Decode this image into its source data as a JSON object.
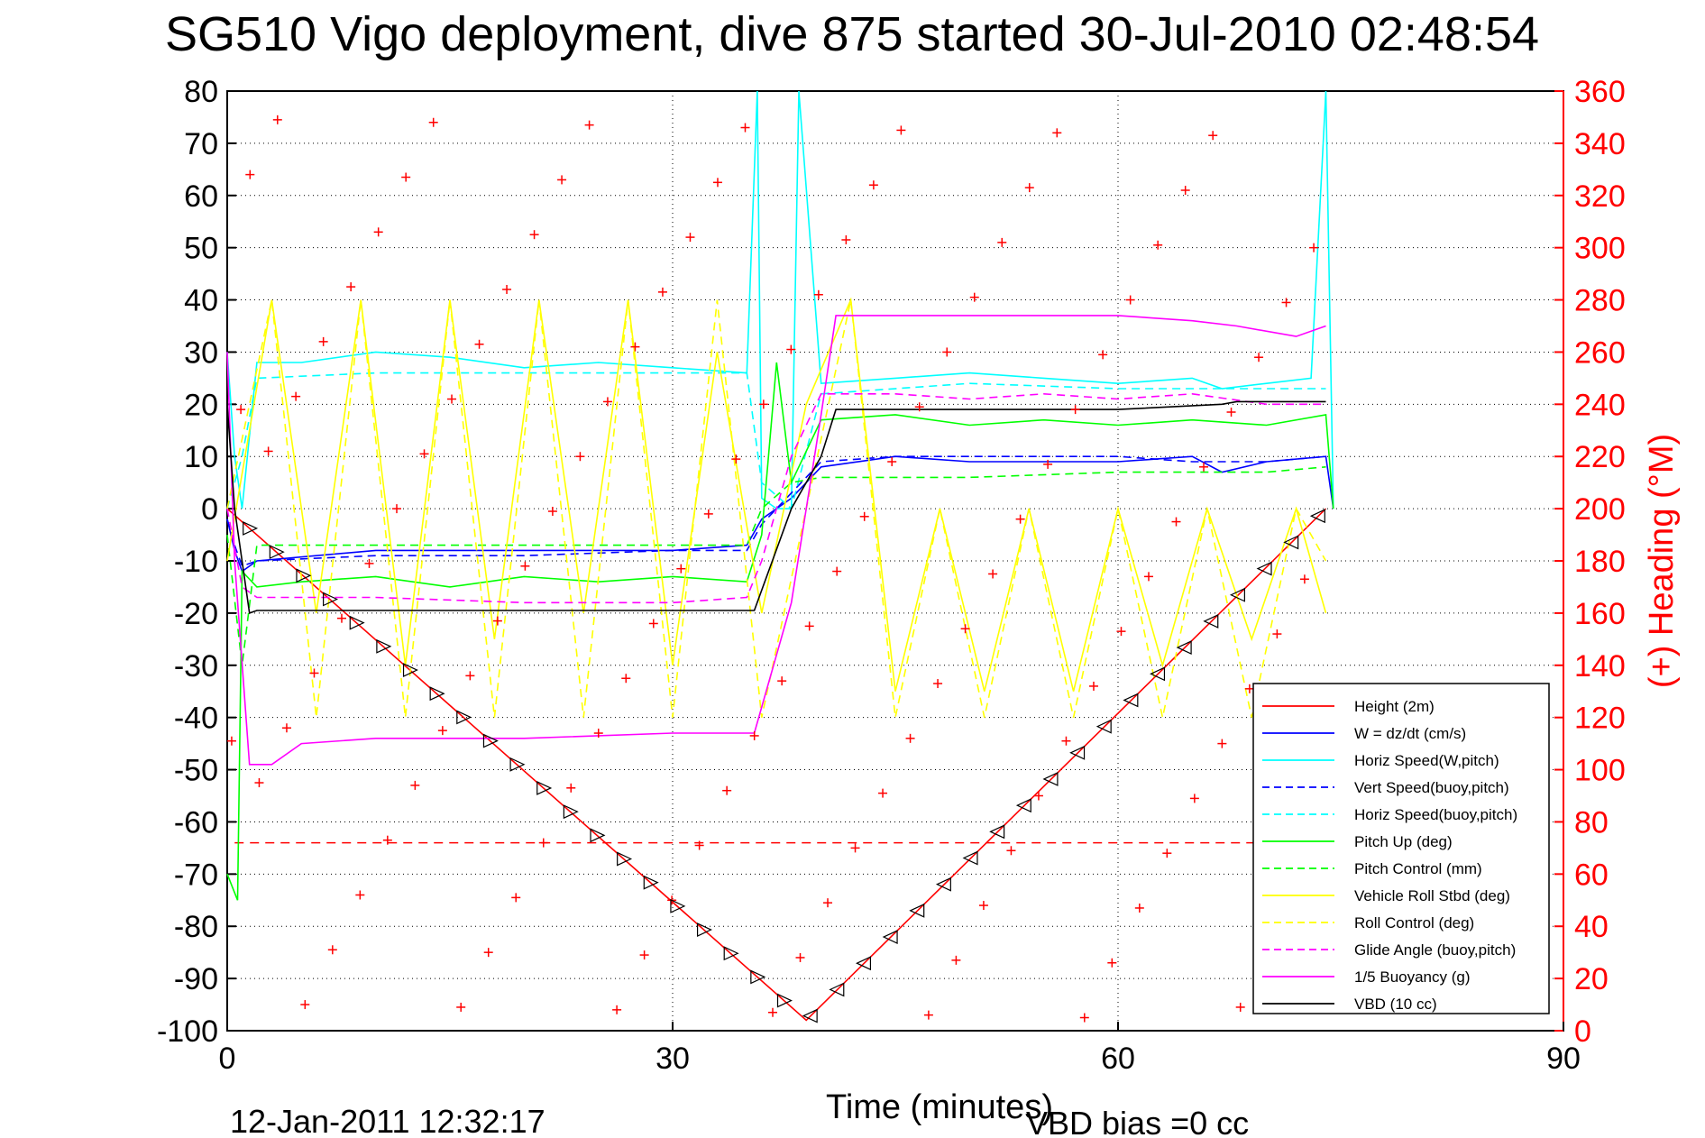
{
  "title": "SG510 Vigo deployment, dive 875 started 30-Jul-2010 02:48:54",
  "footer_left": "12-Jan-2011 12:32:17",
  "footer_right": "VBD bias =0 cc",
  "chart_data": {
    "type": "line",
    "title": "SG510 Vigo deployment, dive 875 started 30-Jul-2010 02:48:54",
    "xlabel": "Time (minutes)",
    "ylabel": "",
    "ylabel_right": "(+) Heading (°M)",
    "xlim": [
      0,
      90
    ],
    "ylim": [
      -100,
      80
    ],
    "ylim_right": [
      0,
      360
    ],
    "x_ticks": [
      "0",
      "30",
      "60",
      "90"
    ],
    "y_ticks": [
      "80",
      "70",
      "60",
      "50",
      "40",
      "30",
      "20",
      "10",
      "0",
      "-10",
      "-20",
      "-30",
      "-40",
      "-50",
      "-60",
      "-70",
      "-80",
      "-90",
      "-100"
    ],
    "y_ticks_right": [
      "360",
      "340",
      "320",
      "300",
      "280",
      "260",
      "240",
      "220",
      "200",
      "180",
      "160",
      "140",
      "120",
      "100",
      "80",
      "60",
      "40",
      "20",
      "0"
    ],
    "grid": true,
    "legend_position": "bottom-right",
    "colors": {
      "height": "#ff0000",
      "w": "#0000ff",
      "horiz_w": "#00ffff",
      "pitch": "#00ff00",
      "roll": "#ffff00",
      "glide": "#ff00ff",
      "buoy": "#ff00ff",
      "vbd": "#000000",
      "heading": "#ff0000"
    },
    "series": [
      {
        "name": "Height (2m)",
        "color": "#ff0000",
        "dash": "solid",
        "x": [
          0,
          39,
          74
        ],
        "y": [
          0,
          -98,
          0
        ]
      },
      {
        "name": "W = dz/dt (cm/s)",
        "color": "#0000ff",
        "dash": "solid",
        "x": [
          0,
          0.5,
          1,
          2,
          10,
          20,
          30,
          35,
          36,
          38,
          40,
          45,
          50,
          55,
          60,
          65,
          67,
          70,
          74,
          74.5
        ],
        "y": [
          -2,
          -8,
          -12,
          -10,
          -8,
          -8,
          -8,
          -7,
          -2,
          2,
          8,
          10,
          9,
          9,
          9,
          10,
          7,
          9,
          10,
          0
        ]
      },
      {
        "name": "Horiz Speed(W,pitch)",
        "color": "#00ffff",
        "dash": "solid",
        "x": [
          0,
          0.5,
          1,
          2,
          5,
          10,
          15,
          20,
          25,
          30,
          35,
          35.7,
          36,
          37,
          38,
          38.5,
          40,
          45,
          50,
          55,
          60,
          65,
          67,
          70,
          73,
          74,
          74.5
        ],
        "y": [
          30,
          10,
          0,
          28,
          28,
          30,
          29,
          27,
          28,
          27,
          26,
          80,
          2,
          0,
          0,
          80,
          24,
          25,
          26,
          25,
          24,
          25,
          23,
          24,
          25,
          80,
          0
        ]
      },
      {
        "name": "Vert Speed(buoy,pitch)",
        "color": "#0000ff",
        "dash": "dashed",
        "x": [
          0,
          0.5,
          1,
          2,
          10,
          20,
          30,
          35,
          36,
          38,
          40,
          45,
          50,
          55,
          60,
          65,
          70,
          74
        ],
        "y": [
          -2,
          -7,
          -11,
          -10,
          -9,
          -9,
          -8,
          -8,
          -3,
          3,
          9,
          10,
          10,
          10,
          10,
          9,
          9,
          10
        ]
      },
      {
        "name": "Horiz Speed(buoy,pitch)",
        "color": "#00ffff",
        "dash": "dashed",
        "x": [
          0,
          1,
          2,
          10,
          20,
          30,
          35,
          36,
          38,
          40,
          50,
          60,
          70,
          74
        ],
        "y": [
          0,
          10,
          25,
          26,
          26,
          26,
          26,
          5,
          0,
          22,
          24,
          23,
          23,
          23
        ]
      },
      {
        "name": "Pitch Up (deg)",
        "color": "#00ff00",
        "dash": "solid",
        "x": [
          0,
          0.7,
          1,
          2,
          5,
          10,
          15,
          20,
          25,
          30,
          35,
          36,
          37,
          38,
          40,
          45,
          50,
          55,
          60,
          65,
          70,
          74,
          74.5
        ],
        "y": [
          -70,
          -75,
          -12,
          -15,
          -14,
          -13,
          -15,
          -13,
          -14,
          -13,
          -14,
          -5,
          28,
          5,
          17,
          18,
          16,
          17,
          16,
          17,
          16,
          18,
          0
        ]
      },
      {
        "name": "Pitch Control (mm)",
        "color": "#00ff00",
        "dash": "dashed",
        "x": [
          0,
          1,
          2,
          10,
          20,
          30,
          35,
          36,
          38,
          40,
          50,
          60,
          70,
          74
        ],
        "y": [
          -5,
          -30,
          -7,
          -7,
          -7,
          -7,
          -7,
          0,
          5,
          6,
          6,
          7,
          7,
          8
        ]
      },
      {
        "name": "Vehicle Roll Stbd (deg)",
        "color": "#ffff00",
        "dash": "solid",
        "x": [
          0,
          3,
          6,
          9,
          12,
          15,
          18,
          21,
          24,
          27,
          30,
          33,
          36,
          39,
          42,
          45,
          48,
          51,
          54,
          57,
          60,
          63,
          66,
          69,
          72,
          74
        ],
        "y": [
          -10,
          40,
          -20,
          40,
          -30,
          40,
          -25,
          40,
          -20,
          40,
          -30,
          30,
          -20,
          20,
          40,
          -35,
          0,
          -35,
          0,
          -35,
          0,
          -30,
          0,
          -25,
          0,
          -20
        ]
      },
      {
        "name": "Roll Control (deg)",
        "color": "#ffff00",
        "dash": "dashed",
        "x": [
          0,
          3,
          6,
          9,
          12,
          15,
          18,
          21,
          24,
          27,
          30,
          33,
          36,
          39,
          42,
          45,
          48,
          51,
          54,
          57,
          60,
          63,
          66,
          69,
          72,
          74
        ],
        "y": [
          0,
          40,
          -40,
          40,
          -40,
          40,
          -40,
          40,
          -40,
          40,
          -40,
          40,
          -40,
          0,
          40,
          -40,
          0,
          -40,
          0,
          -40,
          0,
          -40,
          0,
          -40,
          0,
          -10
        ]
      },
      {
        "name": "Glide Angle (buoy,pitch)",
        "color": "#ff00ff",
        "dash": "dashed",
        "x": [
          0,
          1,
          2,
          10,
          20,
          30,
          35,
          36,
          38,
          40,
          45,
          50,
          55,
          60,
          65,
          70,
          74
        ],
        "y": [
          0,
          -15,
          -17,
          -17,
          -18,
          -18,
          -17,
          -10,
          10,
          22,
          22,
          21,
          22,
          21,
          22,
          20,
          20
        ]
      },
      {
        "name": "1/5 Buoyancy (g)",
        "color": "#ff00ff",
        "dash": "solid",
        "x": [
          0,
          0.5,
          1.5,
          2,
          3,
          5,
          10,
          20,
          30,
          35.5,
          38,
          40,
          41,
          50,
          60,
          65,
          68,
          72,
          74
        ],
        "y": [
          30,
          -10,
          -49,
          -49,
          -49,
          -45,
          -44,
          -44,
          -43,
          -43,
          -18,
          18,
          37,
          37,
          37,
          36,
          35,
          33,
          35
        ]
      },
      {
        "name": "VBD (10 cc)",
        "color": "#000000",
        "dash": "solid",
        "x": [
          0,
          0.5,
          1.5,
          2,
          10,
          20,
          30,
          35.5,
          38,
          40,
          41,
          60,
          67,
          68,
          74
        ],
        "y": [
          20,
          0,
          -20,
          -19.5,
          -19.5,
          -19.5,
          -19.5,
          -19.5,
          0,
          10,
          19,
          19,
          20,
          20.5,
          20.5
        ]
      }
    ],
    "reference_line": {
      "y": -64,
      "color": "#ff0000",
      "dash": "dashed"
    },
    "heading_points_deg": [
      3,
      5,
      6,
      8,
      10,
      12,
      14,
      16,
      18,
      20,
      22,
      24,
      26,
      28,
      30,
      32,
      34,
      36,
      38,
      40,
      42,
      44,
      46,
      48,
      50,
      52,
      54,
      56,
      58,
      60,
      62,
      64,
      66,
      68,
      70,
      72,
      74,
      76,
      78,
      80,
      82,
      84,
      86,
      88,
      90,
      92,
      94,
      96,
      98,
      100,
      102,
      104,
      106,
      108,
      110,
      112,
      114,
      116,
      118,
      120,
      122,
      124,
      126,
      128,
      130,
      132,
      134,
      136,
      138,
      140,
      142,
      144,
      146,
      148,
      150,
      152,
      154,
      156,
      158,
      160,
      162,
      164,
      166,
      168,
      170,
      172,
      174,
      176,
      178,
      180,
      182,
      184,
      186,
      188,
      190,
      192,
      194,
      196,
      198,
      200,
      202,
      204,
      206,
      208,
      210,
      212,
      214,
      216,
      218,
      220,
      222,
      224,
      226,
      228,
      230,
      232,
      234,
      236,
      238,
      240
    ]
  },
  "legend": [
    {
      "label": "Height (2m)",
      "color": "#ff0000",
      "dash": "solid"
    },
    {
      "label": "W = dz/dt (cm/s)",
      "color": "#0000ff",
      "dash": "solid"
    },
    {
      "label": "Horiz Speed(W,pitch)",
      "color": "#00ffff",
      "dash": "solid"
    },
    {
      "label": "Vert Speed(buoy,pitch)",
      "color": "#0000ff",
      "dash": "dashed"
    },
    {
      "label": "Horiz Speed(buoy,pitch)",
      "color": "#00ffff",
      "dash": "dashed"
    },
    {
      "label": "Pitch Up (deg)",
      "color": "#00ff00",
      "dash": "solid"
    },
    {
      "label": "Pitch Control (mm)",
      "color": "#00ff00",
      "dash": "dashed"
    },
    {
      "label": "Vehicle Roll Stbd (deg)",
      "color": "#ffff00",
      "dash": "solid"
    },
    {
      "label": "Roll Control (deg)",
      "color": "#ffff00",
      "dash": "dashed"
    },
    {
      "label": "Glide Angle (buoy,pitch)",
      "color": "#ff00ff",
      "dash": "dashed"
    },
    {
      "label": "1/5 Buoyancy (g)",
      "color": "#ff00ff",
      "dash": "solid"
    },
    {
      "label": "VBD (10 cc)",
      "color": "#000000",
      "dash": "solid"
    }
  ]
}
